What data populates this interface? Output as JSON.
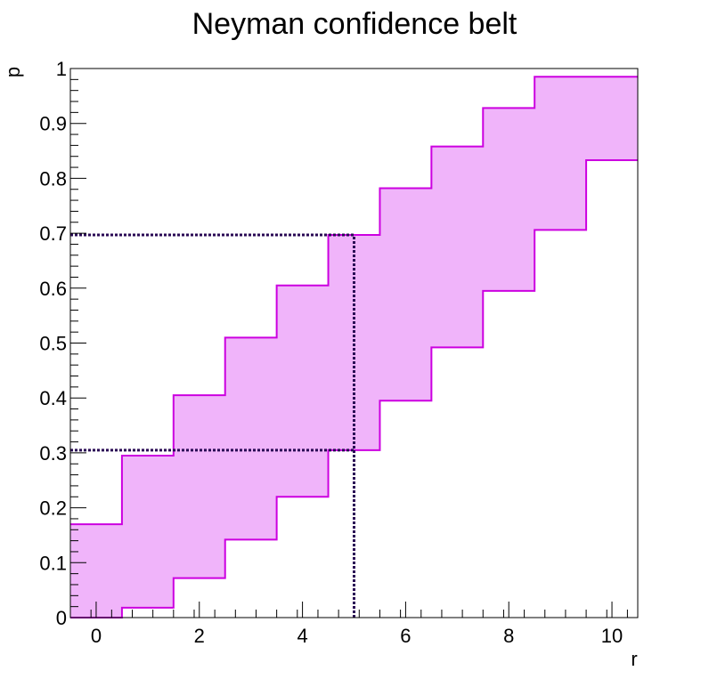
{
  "chart_data": {
    "type": "area",
    "title": "Neyman confidence belt",
    "xlabel": "r",
    "ylabel": "p",
    "xlim": [
      -0.5,
      10.5
    ],
    "ylim": [
      0,
      1
    ],
    "grid": false,
    "x_ticks": [
      "0",
      "2",
      "4",
      "6",
      "8",
      "10"
    ],
    "y_ticks": [
      "0",
      "0.1",
      "0.2",
      "0.3",
      "0.4",
      "0.5",
      "0.6",
      "0.7",
      "0.8",
      "0.9",
      "1"
    ],
    "r_values": [
      0,
      1,
      2,
      3,
      4,
      5,
      6,
      7,
      8,
      9,
      10
    ],
    "upper": [
      0.17,
      0.295,
      0.405,
      0.51,
      0.605,
      0.697,
      0.782,
      0.858,
      0.928,
      0.985,
      0.985
    ],
    "lower": [
      0.0,
      0.018,
      0.072,
      0.142,
      0.22,
      0.305,
      0.395,
      0.492,
      0.595,
      0.706,
      0.833
    ],
    "belt_fill": "#f0b4fa",
    "belt_line": "#cc00e0",
    "interval": {
      "r_observed": 5,
      "p_low": 0.305,
      "p_high": 0.697,
      "line_color": "#2a0a55"
    }
  }
}
